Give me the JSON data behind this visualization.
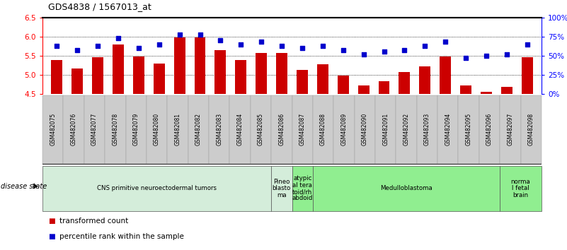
{
  "title": "GDS4838 / 1567013_at",
  "samples": [
    "GSM482075",
    "GSM482076",
    "GSM482077",
    "GSM482078",
    "GSM482079",
    "GSM482080",
    "GSM482081",
    "GSM482082",
    "GSM482083",
    "GSM482084",
    "GSM482085",
    "GSM482086",
    "GSM482087",
    "GSM482088",
    "GSM482089",
    "GSM482090",
    "GSM482091",
    "GSM482092",
    "GSM482093",
    "GSM482094",
    "GSM482095",
    "GSM482096",
    "GSM482097",
    "GSM482098"
  ],
  "bar_values": [
    5.38,
    5.17,
    5.45,
    5.8,
    5.48,
    5.3,
    5.97,
    5.97,
    5.64,
    5.38,
    5.57,
    5.57,
    5.13,
    5.28,
    4.97,
    4.72,
    4.83,
    5.07,
    5.22,
    5.48,
    4.72,
    4.55,
    4.68,
    5.45
  ],
  "dot_values": [
    63,
    57,
    63,
    73,
    60,
    65,
    78,
    78,
    70,
    65,
    68,
    63,
    60,
    63,
    57,
    52,
    55,
    57,
    63,
    68,
    47,
    50,
    52,
    65
  ],
  "bar_color": "#cc0000",
  "dot_color": "#0000cc",
  "ylim_left": [
    4.5,
    6.5
  ],
  "ylim_right": [
    0,
    100
  ],
  "yticks_left": [
    4.5,
    5.0,
    5.5,
    6.0,
    6.5
  ],
  "yticks_right": [
    0,
    25,
    50,
    75,
    100
  ],
  "ytick_labels_right": [
    "0%",
    "25%",
    "50%",
    "75%",
    "100%"
  ],
  "grid_values": [
    5.0,
    5.5,
    6.0
  ],
  "disease_groups": [
    {
      "label": "CNS primitive neuroectodermal tumors",
      "start": 0,
      "end": 11,
      "color": "#d4edda"
    },
    {
      "label": "Pineo\nblasto\nma",
      "start": 11,
      "end": 12,
      "color": "#d4edda"
    },
    {
      "label": "atypic\nal tera\ntoid/rh\nabdoid",
      "start": 12,
      "end": 13,
      "color": "#90ee90"
    },
    {
      "label": "Medulloblastoma",
      "start": 13,
      "end": 22,
      "color": "#90ee90"
    },
    {
      "label": "norma\nl fetal\nbrain",
      "start": 22,
      "end": 24,
      "color": "#90ee90"
    }
  ],
  "disease_state_label": "disease state",
  "legend_items": [
    {
      "color": "#cc0000",
      "label": "transformed count"
    },
    {
      "color": "#0000cc",
      "label": "percentile rank within the sample"
    }
  ],
  "figsize": [
    8.01,
    3.54
  ],
  "dpi": 100
}
